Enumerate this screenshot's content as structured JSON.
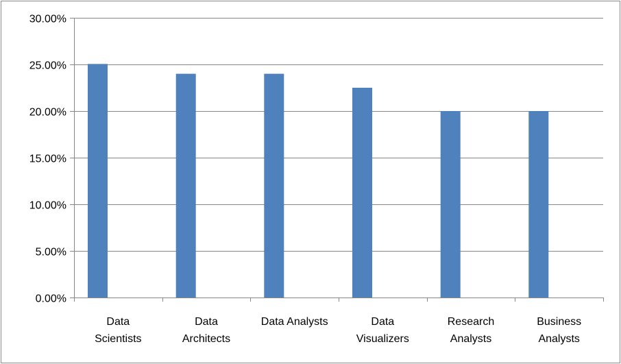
{
  "chart_data": {
    "type": "bar",
    "title": "",
    "xlabel": "",
    "ylabel": "",
    "categories": [
      "Data Scientists",
      "Data Architects",
      "Data Analysts",
      "Data Visualizers",
      "Research Analysts",
      "Business Analysts"
    ],
    "category_label_lines": [
      [
        "Data",
        "Scientists"
      ],
      [
        "Data",
        "Architects"
      ],
      [
        "Data Analysts"
      ],
      [
        "Data",
        "Visualizers"
      ],
      [
        "Research",
        "Analysts"
      ],
      [
        "Business",
        "Analysts"
      ]
    ],
    "values": [
      0.2505,
      0.24,
      0.24,
      0.225,
      0.2,
      0.2
    ],
    "ylim": [
      0,
      0.3
    ],
    "yticks": [
      0,
      0.05,
      0.1,
      0.15,
      0.2,
      0.25,
      0.3
    ],
    "ytick_labels": [
      "0.00%",
      "5.00%",
      "10.00%",
      "15.00%",
      "20.00%",
      "25.00%",
      "30.00%"
    ],
    "grid": true,
    "legend": "none",
    "bar_color": "#4f81bd",
    "grid_color": "#868686",
    "axis_color": "#868686"
  }
}
